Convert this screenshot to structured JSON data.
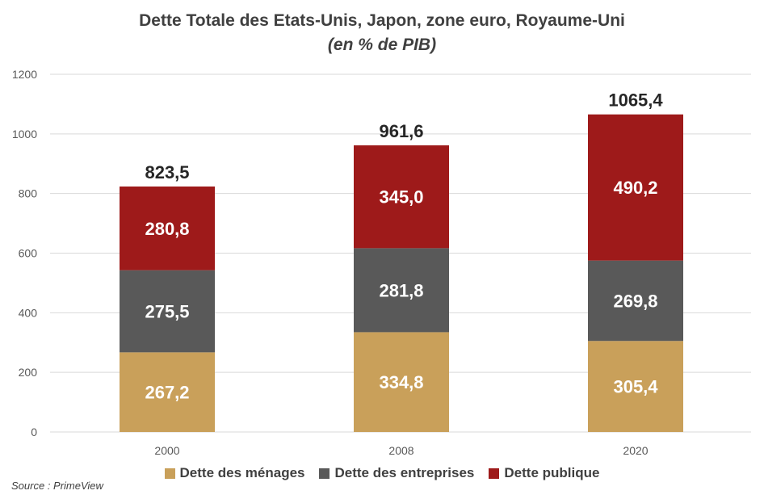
{
  "chart_data": {
    "type": "bar",
    "stacked": true,
    "title": "Dette Totale des Etats-Unis, Japon, zone euro, Royaume-Uni",
    "subtitle": "(en % de PIB)",
    "categories": [
      "2000",
      "2008",
      "2020"
    ],
    "series": [
      {
        "name": "Dette des ménages",
        "values": [
          267.2,
          334.8,
          305.4
        ],
        "labels": [
          "267,2",
          "334,8",
          "305,4"
        ],
        "color": "#C9A05A"
      },
      {
        "name": "Dette des entreprises",
        "values": [
          275.5,
          281.8,
          269.8
        ],
        "labels": [
          "275,5",
          "281,8",
          "269,8"
        ],
        "color": "#595959"
      },
      {
        "name": "Dette publique",
        "values": [
          280.8,
          345.0,
          490.2
        ],
        "labels": [
          "280,8",
          "345,0",
          "490,2"
        ],
        "color": "#9E1A1A"
      }
    ],
    "totals": [
      "823,5",
      "961,6",
      "1065,4"
    ],
    "ylim": [
      0,
      1200
    ],
    "yticks": [
      "0",
      "200",
      "400",
      "600",
      "800",
      "1000",
      "1200"
    ],
    "grid": true,
    "legend_position": "bottom",
    "source": "Source : PrimeView"
  }
}
